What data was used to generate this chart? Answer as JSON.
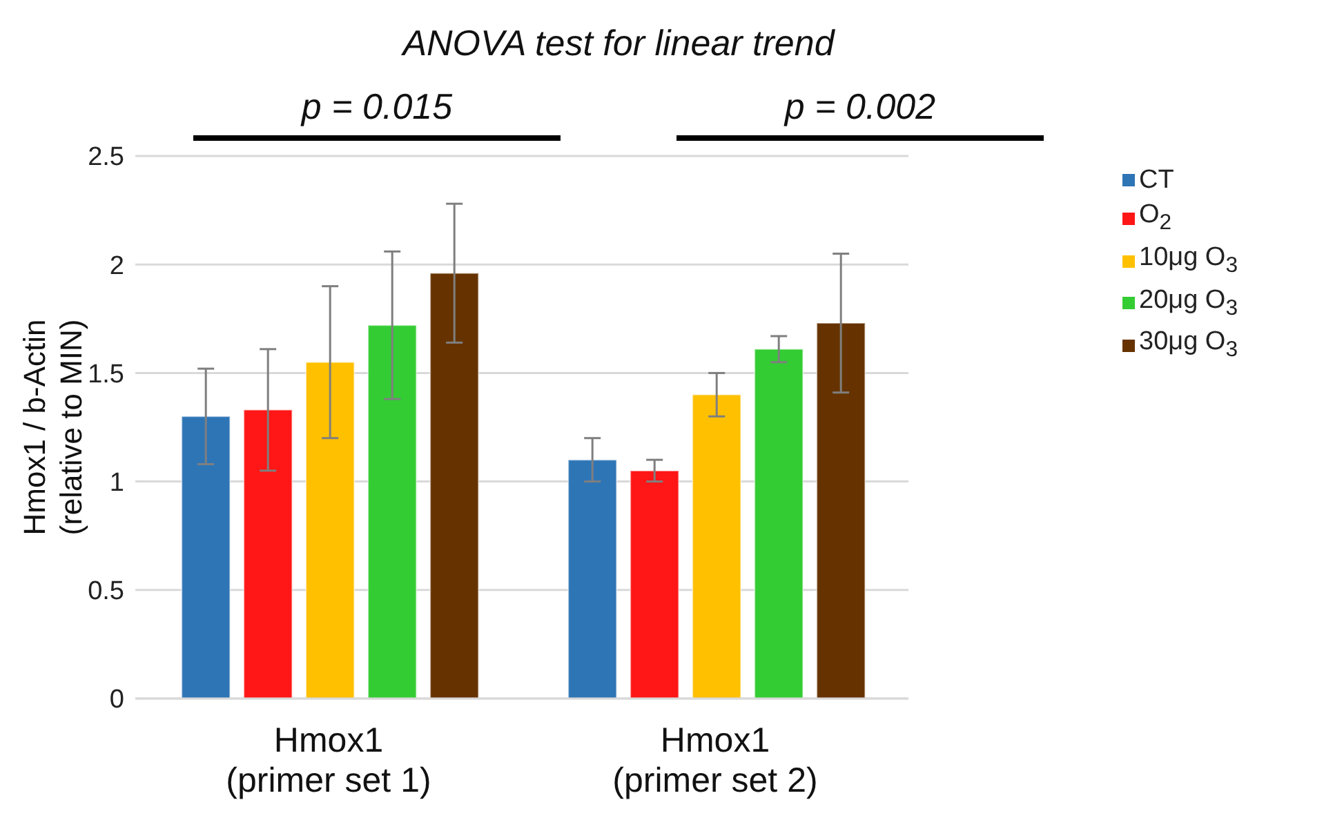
{
  "chart_data": {
    "type": "bar",
    "title": "ANOVA test for linear trend",
    "ylabel": "Hmox1 / b-Actin\n(relative to MIN)",
    "categories": [
      "Hmox1\n(primer set 1)",
      "Hmox1\n(primer set 2)"
    ],
    "series": [
      {
        "name": "CT",
        "color": "#2e75b6",
        "values": [
          1.3,
          1.1
        ],
        "errors": [
          0.22,
          0.1
        ]
      },
      {
        "name": "O$_{2}$",
        "color": "#ff1616",
        "values": [
          1.33,
          1.05
        ],
        "errors": [
          0.28,
          0.05
        ]
      },
      {
        "name": "10μg O$_{3}$",
        "color": "#ffc000",
        "values": [
          1.55,
          1.4
        ],
        "errors": [
          0.35,
          0.1
        ]
      },
      {
        "name": "20μg O$_{3}$",
        "color": "#33cc33",
        "values": [
          1.72,
          1.61
        ],
        "errors": [
          0.34,
          0.06
        ]
      },
      {
        "name": "30μg O$_{3}$",
        "color": "#663300",
        "values": [
          1.96,
          1.73
        ],
        "errors": [
          0.32,
          0.32
        ]
      }
    ],
    "annotations": [
      "p = 0.015",
      "p = 0.002"
    ],
    "ylim": [
      0,
      2.5
    ],
    "yticks": [
      0,
      0.5,
      1,
      1.5,
      2,
      2.5
    ],
    "grid": "y",
    "legend": "right"
  }
}
